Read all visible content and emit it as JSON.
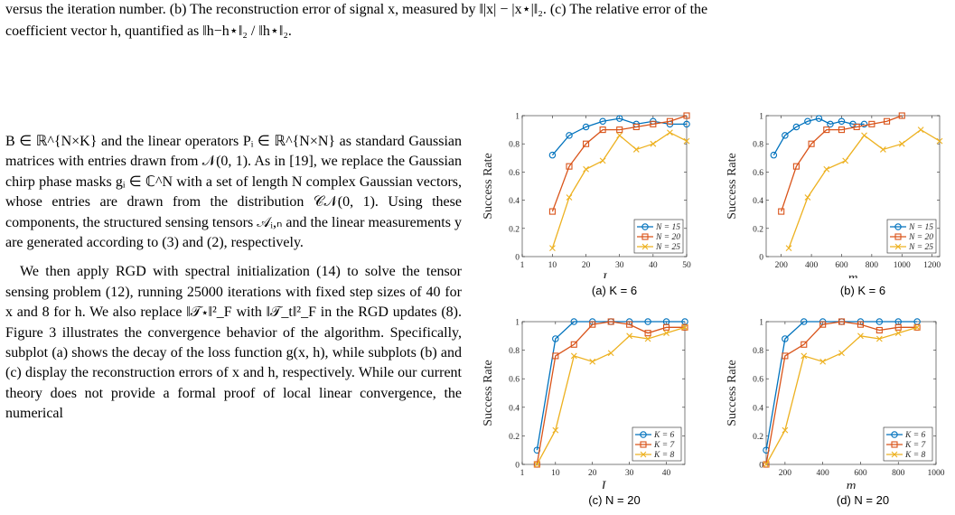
{
  "caption": {
    "line1": "versus the iteration number. (b) The reconstruction error of signal x, measured by ‖|x| − |x⋆|‖₂. (c) The relative error of the",
    "line2": "coefficient vector h, quantified as ‖h−h⋆‖₂ / ‖h⋆‖₂."
  },
  "body": {
    "p1": "B ∈ ℝ^{N×K} and the linear operators Pᵢ ∈ ℝ^{N×N} as standard Gaussian matrices with entries drawn from 𝒩(0, 1). As in [19], we replace the Gaussian chirp phase masks gᵢ ∈ ℂ^N with a set of length N complex Gaussian vectors, whose entries are drawn from the distribution 𝒞𝒩(0, 1). Using these components, the structured sensing tensors 𝒜ᵢ,ₙ and the linear measurements y are generated according to (3) and (2), respectively.",
    "p2": "We then apply RGD with spectral initialization (14) to solve the tensor sensing problem (12), running 25000 iterations with fixed step sizes of 40 for x and 8 for h. We also replace ‖𝒯⋆‖²_F with ‖𝒯_t‖²_F in the RGD updates (8). Figure 3 illustrates the convergence behavior of the algorithm. Specifically, subplot (a) shows the decay of the loss function g(x, h), while subplots (b) and (c) display the reconstruction errors of x and h, respectively. While our current theory does not provide a formal proof of local linear convergence, the numerical"
  },
  "colors": {
    "blue": "#0072BD",
    "orange": "#D95319",
    "yellow": "#EDB120",
    "ref": "#cc0000",
    "cite": "#00aa00"
  },
  "chart_data": [
    {
      "id": "a",
      "type": "line",
      "caption": "(a) K = 6",
      "xlabel": "I",
      "ylabel": "Success Rate",
      "xlim": [
        1,
        50
      ],
      "ylim": [
        0,
        1
      ],
      "xticks": [
        1,
        10,
        20,
        30,
        40,
        50
      ],
      "yticks": [
        0,
        0.2,
        0.4,
        0.6,
        0.8,
        1
      ],
      "ytick_labels": [
        "0",
        "0.2",
        "0.4",
        "0.6",
        "0.8",
        "1"
      ],
      "legend_position": "bottom-right",
      "series": [
        {
          "name": "N = 15",
          "marker": "circle",
          "color": "#0072BD",
          "x": [
            10,
            15,
            20,
            25,
            30,
            35,
            40,
            45,
            50
          ],
          "y": [
            0.72,
            0.86,
            0.92,
            0.96,
            0.98,
            0.94,
            0.96,
            0.94,
            0.94
          ]
        },
        {
          "name": "N = 20",
          "marker": "square",
          "color": "#D95319",
          "x": [
            10,
            15,
            20,
            25,
            30,
            35,
            40,
            45,
            50
          ],
          "y": [
            0.32,
            0.64,
            0.8,
            0.9,
            0.9,
            0.92,
            0.94,
            0.96,
            1.0
          ]
        },
        {
          "name": "N = 25",
          "marker": "x",
          "color": "#EDB120",
          "x": [
            10,
            15,
            20,
            25,
            30,
            35,
            40,
            45,
            50
          ],
          "y": [
            0.06,
            0.42,
            0.62,
            0.68,
            0.86,
            0.76,
            0.8,
            0.88,
            0.82
          ]
        }
      ]
    },
    {
      "id": "b",
      "type": "line",
      "caption": "(b) K = 6",
      "xlabel": "m",
      "ylabel": "Success Rate",
      "xlim": [
        100,
        1250
      ],
      "ylim": [
        0,
        1
      ],
      "xticks": [
        200,
        400,
        600,
        800,
        1000,
        1200
      ],
      "yticks": [
        0,
        0.2,
        0.4,
        0.6,
        0.8,
        1
      ],
      "ytick_labels": [
        "0",
        "0.2",
        "0.4",
        "0.6",
        "0.8",
        "1"
      ],
      "legend_position": "bottom-right",
      "series": [
        {
          "name": "N = 15",
          "marker": "circle",
          "color": "#0072BD",
          "x": [
            150,
            225,
            300,
            375,
            450,
            525,
            600,
            675,
            750
          ],
          "y": [
            0.72,
            0.86,
            0.92,
            0.96,
            0.98,
            0.94,
            0.96,
            0.94,
            0.94
          ]
        },
        {
          "name": "N = 20",
          "marker": "square",
          "color": "#D95319",
          "x": [
            200,
            300,
            400,
            500,
            600,
            700,
            800,
            900,
            1000
          ],
          "y": [
            0.32,
            0.64,
            0.8,
            0.9,
            0.9,
            0.92,
            0.94,
            0.96,
            1.0
          ]
        },
        {
          "name": "N = 25",
          "marker": "x",
          "color": "#EDB120",
          "x": [
            250,
            375,
            500,
            625,
            750,
            875,
            1000,
            1125,
            1250
          ],
          "y": [
            0.06,
            0.42,
            0.62,
            0.68,
            0.86,
            0.76,
            0.8,
            0.9,
            0.82
          ]
        }
      ]
    },
    {
      "id": "c",
      "type": "line",
      "caption": "(c) N = 20",
      "xlabel": "I",
      "ylabel": "Success Rate",
      "xlim": [
        1,
        45
      ],
      "ylim": [
        0,
        1
      ],
      "xticks": [
        1,
        10,
        20,
        30,
        40
      ],
      "yticks": [
        0,
        0.2,
        0.4,
        0.6,
        0.8,
        1
      ],
      "ytick_labels": [
        "0",
        "0.2",
        "0.4",
        "0.6",
        "0.8",
        "1"
      ],
      "legend_position": "bottom-right",
      "series": [
        {
          "name": "K = 6",
          "marker": "circle",
          "color": "#0072BD",
          "x": [
            5,
            10,
            15,
            20,
            25,
            30,
            35,
            40,
            45
          ],
          "y": [
            0.1,
            0.88,
            1.0,
            1.0,
            1.0,
            1.0,
            1.0,
            1.0,
            1.0
          ]
        },
        {
          "name": "K = 7",
          "marker": "square",
          "color": "#D95319",
          "x": [
            5,
            10,
            15,
            20,
            25,
            30,
            35,
            40,
            45
          ],
          "y": [
            0.0,
            0.76,
            0.84,
            0.98,
            1.0,
            0.98,
            0.92,
            0.96,
            0.96
          ]
        },
        {
          "name": "K = 8",
          "marker": "x",
          "color": "#EDB120",
          "x": [
            5,
            10,
            15,
            20,
            25,
            30,
            35,
            40,
            45
          ],
          "y": [
            0.0,
            0.24,
            0.76,
            0.72,
            0.78,
            0.9,
            0.88,
            0.92,
            0.96
          ]
        }
      ]
    },
    {
      "id": "d",
      "type": "line",
      "caption": "(d) N = 20",
      "xlabel": "m",
      "ylabel": "Success Rate",
      "xlim": [
        100,
        1000
      ],
      "ylim": [
        0,
        1
      ],
      "xticks": [
        200,
        400,
        600,
        800,
        1000
      ],
      "yticks": [
        0,
        0.2,
        0.4,
        0.6,
        0.8,
        1
      ],
      "ytick_labels": [
        "0",
        "0.2",
        "0.4",
        "0.6",
        "0.8",
        "1"
      ],
      "legend_position": "bottom-right",
      "series": [
        {
          "name": "K = 6",
          "marker": "circle",
          "color": "#0072BD",
          "x": [
            100,
            200,
            300,
            400,
            500,
            600,
            700,
            800,
            900
          ],
          "y": [
            0.1,
            0.88,
            1.0,
            1.0,
            1.0,
            1.0,
            1.0,
            1.0,
            1.0
          ]
        },
        {
          "name": "K = 7",
          "marker": "square",
          "color": "#D95319",
          "x": [
            100,
            200,
            300,
            400,
            500,
            600,
            700,
            800,
            900
          ],
          "y": [
            0.0,
            0.76,
            0.84,
            0.98,
            1.0,
            0.98,
            0.94,
            0.96,
            0.96
          ]
        },
        {
          "name": "K = 8",
          "marker": "x",
          "color": "#EDB120",
          "x": [
            100,
            200,
            300,
            400,
            500,
            600,
            700,
            800,
            900
          ],
          "y": [
            0.0,
            0.24,
            0.76,
            0.72,
            0.78,
            0.9,
            0.88,
            0.92,
            0.96
          ]
        }
      ]
    }
  ]
}
